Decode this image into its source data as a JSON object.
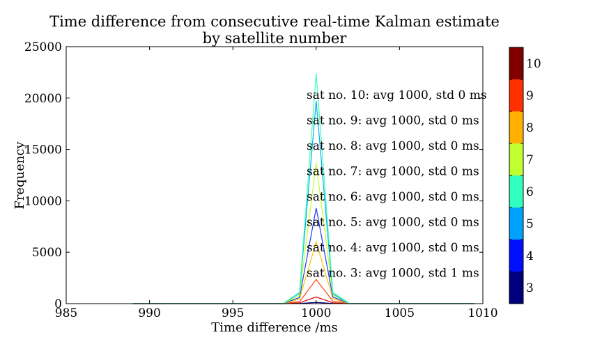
{
  "chart_data": {
    "type": "line",
    "title_lines": [
      "Time difference from consecutive real-time Kalman estimate",
      "by satellite number"
    ],
    "xlabel": "Time difference /ms",
    "ylabel": "Frequency",
    "xlim": [
      985,
      1010
    ],
    "ylim": [
      0,
      25000
    ],
    "x_ticks": [
      "985",
      "990",
      "995",
      "1000",
      "1005",
      "1010"
    ],
    "y_ticks": [
      "0",
      "5000",
      "10000",
      "15000",
      "20000",
      "25000"
    ],
    "x_tick_values": [
      985,
      990,
      995,
      1000,
      1005,
      1010
    ],
    "y_tick_values": [
      0,
      5000,
      10000,
      15000,
      20000,
      25000
    ],
    "x": [
      989,
      990,
      991,
      992,
      993,
      994,
      995,
      996,
      997,
      998,
      999,
      1000,
      1001,
      1002,
      1003,
      1004,
      1005,
      1006,
      1007,
      1008,
      1009,
      1009.5
    ],
    "series": [
      {
        "sat": 3,
        "color": "#00007f",
        "values": [
          0,
          0,
          0,
          0,
          0,
          0,
          0,
          0,
          0,
          0,
          20,
          120,
          20,
          0,
          0,
          0,
          0,
          0,
          0,
          0,
          0,
          0
        ]
      },
      {
        "sat": 4,
        "color": "#d00000",
        "values": [
          0,
          0,
          0,
          0,
          0,
          0,
          0,
          0,
          0,
          0,
          80,
          650,
          90,
          0,
          0,
          0,
          0,
          0,
          0,
          0,
          0,
          0
        ]
      },
      {
        "sat": 5,
        "color": "#ff4000",
        "values": [
          0,
          0,
          0,
          0,
          0,
          0,
          0,
          0,
          0,
          0,
          200,
          2350,
          250,
          0,
          0,
          0,
          0,
          0,
          0,
          0,
          0,
          0
        ]
      },
      {
        "sat": 6,
        "color": "#ffc000",
        "values": [
          0,
          0,
          0,
          0,
          0,
          0,
          0,
          0,
          0,
          0,
          450,
          6000,
          500,
          0,
          0,
          0,
          0,
          0,
          0,
          0,
          0,
          0
        ]
      },
      {
        "sat": 7,
        "color": "#1b3cff",
        "values": [
          0,
          0,
          0,
          0,
          0,
          0,
          0,
          0,
          0,
          0,
          600,
          9300,
          650,
          0,
          0,
          0,
          0,
          0,
          0,
          0,
          0,
          0
        ]
      },
      {
        "sat": 8,
        "color": "#c6ff2a",
        "values": [
          0,
          0,
          0,
          0,
          0,
          0,
          0,
          0,
          0,
          0,
          800,
          13700,
          850,
          0,
          0,
          0,
          0,
          0,
          0,
          0,
          0,
          0
        ]
      },
      {
        "sat": 9,
        "color": "#00b0f0",
        "values": [
          0,
          0,
          0,
          0,
          0,
          0,
          0,
          0,
          0,
          0,
          1000,
          19700,
          950,
          0,
          0,
          0,
          0,
          0,
          0,
          0,
          0,
          0
        ]
      },
      {
        "sat": 10,
        "color": "#40ffb0",
        "values": [
          0,
          0,
          0,
          0,
          0,
          0,
          0,
          0,
          0,
          0,
          1100,
          22400,
          1100,
          0,
          0,
          0,
          0,
          0,
          0,
          0,
          0,
          0
        ]
      }
    ],
    "annotations": [
      "sat no. 10: avg 1000, std 0 ms",
      "sat no. 9: avg 1000, std 0 ms",
      "sat no. 8: avg 1000, std 0 ms",
      "sat no. 7: avg 1000, std 0 ms",
      "sat no. 6: avg 1000, std 0 ms",
      "sat no. 5: avg 1000, std 0 ms",
      "sat no. 4: avg 1000, std 0 ms",
      "sat no. 3: avg 1000, std 1 ms"
    ],
    "colorbar": {
      "labels": [
        "3",
        "4",
        "5",
        "6",
        "7",
        "8",
        "9",
        "10"
      ],
      "colors": [
        "#00007f",
        "#0010ff",
        "#00a0ff",
        "#30ffc0",
        "#c0ff30",
        "#ffb000",
        "#ff3000",
        "#800000"
      ]
    }
  }
}
